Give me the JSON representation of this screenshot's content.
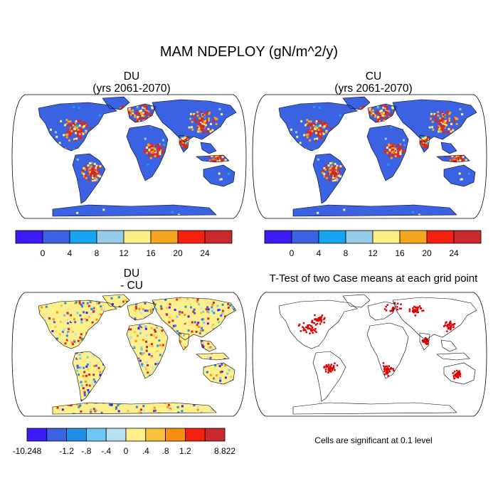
{
  "title": "MAM NDEPLOY (gN/m^2/y)",
  "panels": {
    "du": {
      "title1": "DU",
      "title2": "(yrs 2061-2070)"
    },
    "cu": {
      "title1": "CU",
      "title2": "(yrs 2061-2070)"
    },
    "diff": {
      "title1": "DU",
      "title2": "- CU"
    },
    "ttest": {
      "title": "T-Test of two Case means at each grid point",
      "note": "Cells are significant at 0.1 level"
    }
  },
  "colorbar_abs": {
    "colors": [
      "#3b1cf5",
      "#3a62e2",
      "#16a5ee",
      "#93cbe8",
      "#fbef8a",
      "#f6a521",
      "#f4210e",
      "#c9292b"
    ],
    "labels": [
      "0",
      "4",
      "8",
      "12",
      "16",
      "20",
      "24"
    ]
  },
  "colorbar_diff": {
    "colors": [
      "#3b1cf5",
      "#3a62e2",
      "#218ee6",
      "#6ec7f2",
      "#b7e1ef",
      "#fdf08c",
      "#f8c33c",
      "#f68e0f",
      "#f4210e",
      "#c9292b"
    ],
    "labels": [
      "-10.248",
      "-1.2",
      "-.8",
      "-.4",
      "0",
      ".4",
      ".8",
      "1.2",
      "8.822"
    ]
  },
  "colors": {
    "ocean": "#ffffff",
    "land_low": "#3a62e2",
    "land_high": "#e42a1f",
    "coast": "#000000",
    "significant": "#e00000"
  }
}
